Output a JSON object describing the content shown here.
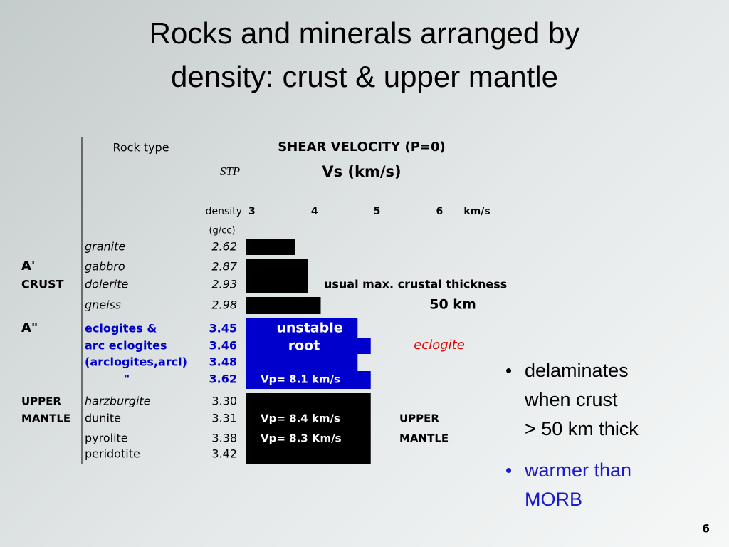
{
  "title": [
    "Rocks and minerals arranged by",
    "density: crust & upper mantle"
  ],
  "table": {
    "header": {
      "rock_type": "Rock type",
      "shear_velocity": "SHEAR VELOCITY (P=0)",
      "stp": "STP",
      "vs": "Vs (km/s)",
      "density": "density",
      "density_unit": "(g/cc)",
      "axis_unit": "km/s"
    },
    "axis": {
      "xlim": [
        2.91,
        6.6
      ],
      "xticks": [
        3,
        4,
        5,
        6
      ]
    },
    "groups": [
      {
        "label": [
          "A'",
          "CRUST"
        ]
      },
      {
        "label": [
          "A\""
        ]
      },
      {
        "label": [
          "UPPER",
          "MANTLE"
        ]
      }
    ],
    "rows": [
      {
        "rock": "granite",
        "density": "2.62",
        "vs": 3.69,
        "color": "#000000"
      },
      {
        "rock": "gabbro",
        "density": "2.87",
        "vs": 3.9,
        "color": "#000000"
      },
      {
        "rock": "dolerite",
        "density": "2.93",
        "vs": 3.9,
        "color": "#000000"
      },
      {
        "rock": "gneiss",
        "density": "2.98",
        "vs": 4.1,
        "color": "#000000"
      },
      {
        "rock": "eclogites &",
        "density": "3.45",
        "vs": 4.69,
        "color": "#0000cc"
      },
      {
        "rock": "arc eclogites",
        "density": "3.46",
        "vs": 4.9,
        "color": "#0000cc"
      },
      {
        "rock": "(arclogites,arcl)",
        "density": "3.48",
        "vs": 4.69,
        "color": "#0000cc"
      },
      {
        "rock": "\"",
        "density": "3.62",
        "vs": 4.9,
        "color": "#0000cc"
      },
      {
        "rock": "harzburgite",
        "density": "3.30",
        "vs": 4.9,
        "color": "#000000"
      },
      {
        "rock": "dunite",
        "density": "3.31",
        "vs": 4.9,
        "color": "#000000"
      },
      {
        "rock": "pyrolite",
        "density": "3.38",
        "vs": 4.9,
        "color": "#000000"
      },
      {
        "rock": "peridotite",
        "density": "3.42",
        "vs": 4.9,
        "color": "#000000"
      }
    ],
    "bar_notes": [
      "unstable",
      "root",
      "Vp= 8.1 km/s",
      "Vp= 8.4 km/s",
      "Vp= 8.3 Km/s"
    ],
    "annotations": {
      "crust_thickness": "usual max. crustal thickness",
      "crust_km": "50 km",
      "eclogite": "eclogite",
      "mantle": [
        "UPPER",
        "MANTLE"
      ]
    }
  },
  "bullets": [
    {
      "lines": [
        "delaminates",
        "when crust",
        "> 50 km thick"
      ]
    },
    {
      "lines": [
        "warmer than",
        "MORB"
      ]
    }
  ],
  "page_number": "6"
}
